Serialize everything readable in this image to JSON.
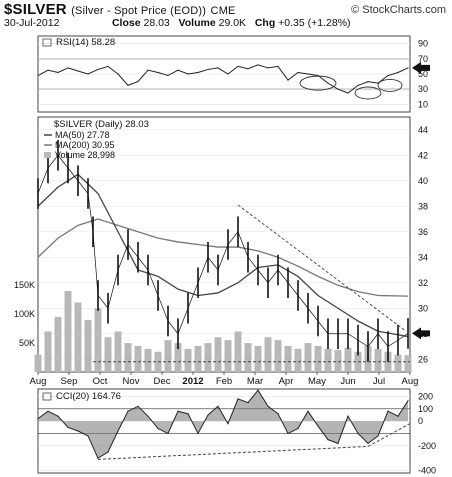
{
  "header": {
    "symbol": "$SILVER",
    "description": "(Silver - Spot Price (EOD))",
    "exchange": "CME",
    "brand": "© StockCharts.com",
    "date": "30-Jul-2012",
    "close_label": "Close",
    "close": "28.03",
    "volume_label": "Volume",
    "volume": "29.0K",
    "chg_label": "Chg",
    "chg": "+0.35 (+1.28%)"
  },
  "chart_data": [
    {
      "type": "line",
      "panel": "rsi",
      "title": "RSI(14) 58.28",
      "ylim": [
        0,
        100
      ],
      "yticks": [
        "90",
        "70",
        "50",
        "30",
        "10"
      ],
      "ytick_values": [
        90,
        70,
        50,
        30,
        10
      ],
      "reference_lines": [
        70,
        30
      ],
      "last_value_marker": 58,
      "x": [
        0,
        10,
        20,
        30,
        40,
        50,
        60,
        70,
        80,
        90,
        100,
        110,
        120,
        130,
        140,
        150,
        160,
        170,
        180,
        190,
        200,
        210,
        220,
        230,
        240,
        250,
        260,
        270,
        280,
        290,
        300,
        310,
        320,
        330,
        340,
        350,
        360,
        370
      ],
      "values": [
        48,
        55,
        52,
        58,
        54,
        50,
        56,
        60,
        50,
        35,
        40,
        55,
        52,
        48,
        55,
        50,
        52,
        56,
        58,
        50,
        60,
        57,
        62,
        58,
        60,
        42,
        52,
        50,
        48,
        38,
        30,
        25,
        35,
        40,
        38,
        48,
        52,
        58
      ],
      "annotations": [
        "oval at RSI near 38 (Apr)",
        "oval at RSI near 25 (late Jun)",
        "oval at RSI near 35 (Jul)"
      ],
      "grid": true
    },
    {
      "type": "line",
      "panel": "price",
      "title": "$SILVER (Daily) 28.03",
      "legend": [
        {
          "name": "MA(50) 27.78",
          "style": "line"
        },
        {
          "name": "MA(200) 30.95",
          "style": "line"
        },
        {
          "name": "Volume 28,998",
          "style": "bar"
        }
      ],
      "ylim": [
        25,
        45
      ],
      "yticks": [
        "44",
        "42",
        "40",
        "38",
        "36",
        "34",
        "32",
        "30",
        "28",
        "26"
      ],
      "ytick_values": [
        44,
        42,
        40,
        38,
        36,
        34,
        32,
        30,
        28,
        26
      ],
      "volume_ticks": [
        "150K",
        "100K",
        "50K"
      ],
      "volume_tick_values": [
        150000,
        100000,
        50000
      ],
      "categories": [
        "Aug",
        "Sep",
        "Oct",
        "Nov",
        "Dec",
        "2012",
        "Feb",
        "Mar",
        "Apr",
        "May",
        "Jun",
        "Jul",
        "Aug"
      ],
      "series": [
        {
          "name": "Price",
          "x": [
            0,
            10,
            20,
            30,
            40,
            50,
            55,
            60,
            70,
            80,
            90,
            100,
            110,
            120,
            130,
            140,
            150,
            160,
            170,
            180,
            190,
            200,
            210,
            220,
            230,
            240,
            250,
            260,
            270,
            280,
            290,
            300,
            310,
            320,
            330,
            340,
            350,
            360,
            370
          ],
          "values": [
            39,
            41,
            42,
            41,
            40,
            39,
            36,
            31,
            30,
            33,
            35,
            34,
            33,
            31,
            29,
            28,
            30,
            32,
            34,
            33,
            35,
            36,
            34,
            33,
            32,
            33,
            32,
            31,
            30,
            29,
            28,
            28,
            28,
            27.5,
            27,
            28,
            27,
            27.5,
            28.03
          ]
        },
        {
          "name": "MA(50) 27.78",
          "x": [
            0,
            20,
            40,
            60,
            80,
            100,
            120,
            140,
            160,
            180,
            200,
            220,
            240,
            260,
            280,
            300,
            320,
            340,
            370
          ],
          "values": [
            38,
            39.5,
            40.5,
            39,
            36,
            33,
            32.5,
            31.5,
            31,
            31.2,
            32,
            33.2,
            33.4,
            32.5,
            31,
            30,
            29,
            28.2,
            27.78
          ]
        },
        {
          "name": "MA(200) 30.95",
          "x": [
            0,
            20,
            40,
            60,
            80,
            100,
            120,
            140,
            160,
            180,
            200,
            220,
            240,
            260,
            280,
            300,
            320,
            340,
            370
          ],
          "values": [
            34,
            35.5,
            36.5,
            37,
            36.5,
            36,
            35.5,
            35.2,
            35,
            34.8,
            34.8,
            34.5,
            34,
            33.3,
            32.5,
            31.8,
            31.3,
            31,
            30.95
          ]
        }
      ],
      "volume": {
        "x": [
          0,
          10,
          20,
          30,
          40,
          50,
          60,
          70,
          80,
          90,
          100,
          110,
          120,
          130,
          140,
          150,
          160,
          170,
          180,
          190,
          200,
          210,
          220,
          230,
          240,
          250,
          260,
          270,
          280,
          290,
          300,
          310,
          320,
          330,
          340,
          350,
          360,
          370
        ],
        "values": [
          30000,
          70000,
          95000,
          140000,
          120000,
          90000,
          110000,
          60000,
          70000,
          50000,
          45000,
          40000,
          35000,
          55000,
          50000,
          40000,
          45000,
          50000,
          60000,
          55000,
          70000,
          50000,
          45000,
          60000,
          55000,
          45000,
          40000,
          50000,
          45000,
          40000,
          38000,
          42000,
          35000,
          45000,
          40000,
          35000,
          30000,
          29000
        ]
      },
      "annotations": [
        "dashed downtrend line from Mar high to Aug",
        "dashed horizontal support line near 26",
        "arrow marker at 28"
      ],
      "grid": true
    },
    {
      "type": "area",
      "panel": "cci",
      "title": "CCI(20) 164.76",
      "ylim": [
        -420,
        260
      ],
      "yticks": [
        "200",
        "100",
        "0",
        "-200",
        "-400"
      ],
      "ytick_values": [
        200,
        100,
        0,
        -200,
        -400
      ],
      "reference_lines": [
        100,
        -100
      ],
      "x": [
        0,
        10,
        20,
        30,
        40,
        50,
        60,
        70,
        80,
        90,
        100,
        110,
        120,
        130,
        140,
        150,
        160,
        170,
        180,
        190,
        200,
        210,
        220,
        230,
        240,
        250,
        260,
        270,
        280,
        290,
        300,
        310,
        320,
        330,
        340,
        350,
        360,
        370
      ],
      "values": [
        20,
        80,
        40,
        -50,
        -80,
        -120,
        -300,
        -250,
        -80,
        80,
        120,
        40,
        -60,
        -100,
        80,
        60,
        -100,
        50,
        120,
        -20,
        180,
        150,
        250,
        120,
        60,
        -100,
        -60,
        80,
        -40,
        -150,
        -180,
        40,
        -100,
        -180,
        -120,
        80,
        40,
        164.76
      ],
      "annotations": [
        "dashed rising support line from -310 (Oct) toward Aug",
        "dashed line rising from -200 to 0 at end"
      ],
      "grid": true
    }
  ]
}
